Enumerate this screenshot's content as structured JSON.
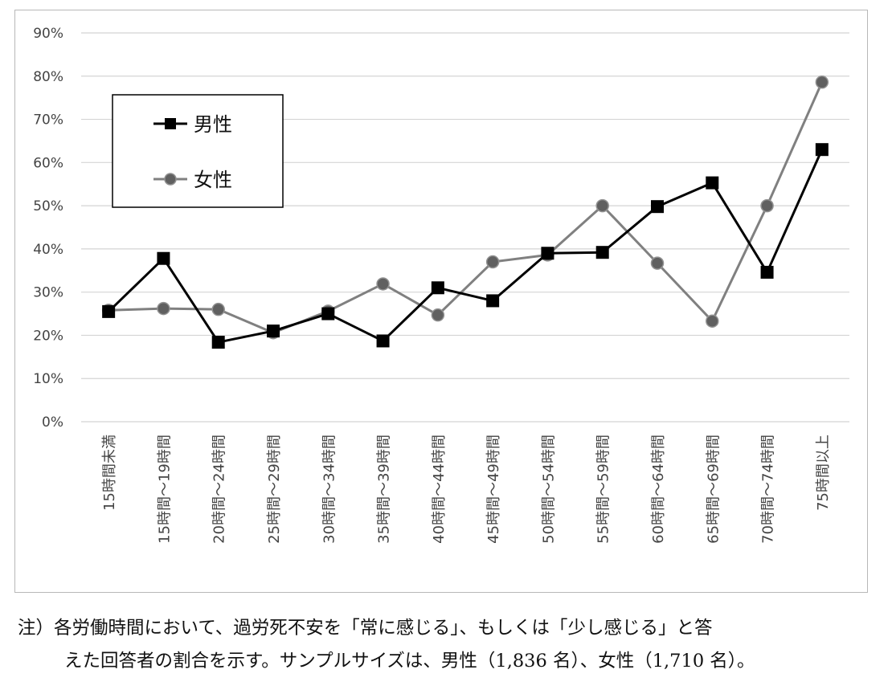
{
  "chart_data": {
    "type": "line",
    "categories": [
      "15時間未満",
      "15時間～19時間",
      "20時間～24時間",
      "25時間～29時間",
      "30時間～34時間",
      "35時間～39時間",
      "40時間～44時間",
      "45時間～49時間",
      "50時間～54時間",
      "55時間～59時間",
      "60時間～64時間",
      "65時間～69時間",
      "70時間～74時間",
      "75時間以上"
    ],
    "series": [
      {
        "name": "男性",
        "color": "#000000",
        "marker": "square",
        "values": [
          25.5,
          37.8,
          18.4,
          21.0,
          25.0,
          18.7,
          31.0,
          28.0,
          39.0,
          39.2,
          49.8,
          55.3,
          34.6,
          63.0
        ]
      },
      {
        "name": "女性",
        "color": "#808080",
        "marker": "circle",
        "values": [
          25.8,
          26.2,
          26.0,
          20.6,
          25.6,
          31.9,
          24.7,
          37.0,
          38.6,
          50.0,
          36.7,
          23.3,
          50.0,
          78.6
        ]
      }
    ],
    "yticks": [
      "0%",
      "10%",
      "20%",
      "30%",
      "40%",
      "50%",
      "60%",
      "70%",
      "80%",
      "90%"
    ],
    "ylim": [
      0,
      90
    ],
    "grid": true,
    "legend_position": "top-left"
  },
  "note": {
    "line1": "注）各労働時間において、過労死不安を「常に感じる」、もしくは「少し感じる」と答",
    "line2": "えた回答者の割合を示す。サンプルサイズは、男性（1,836 名）、女性（1,710 名）。"
  }
}
